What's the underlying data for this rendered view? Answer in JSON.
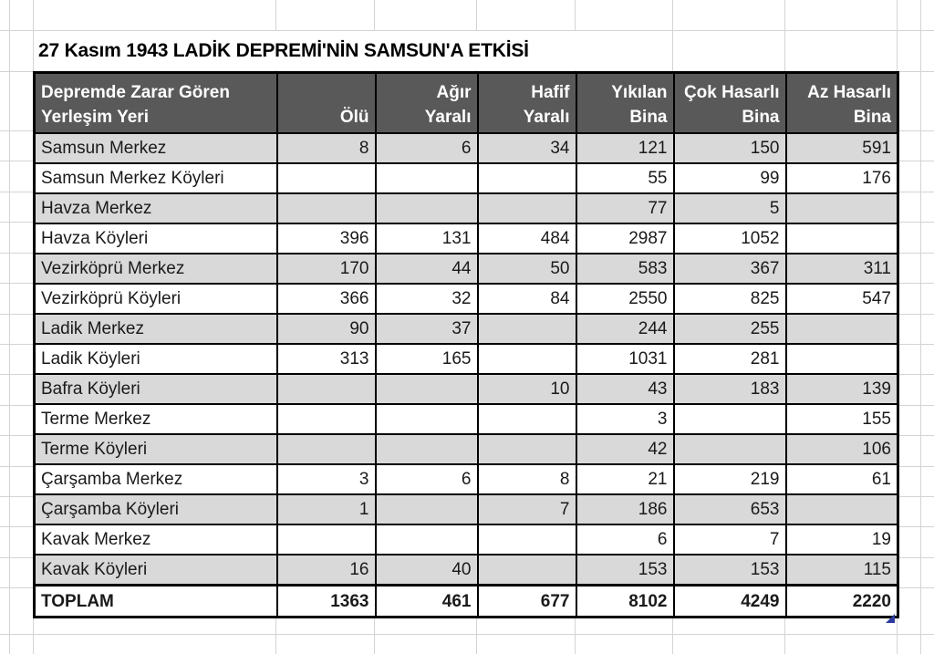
{
  "sheet": {
    "title": "27 Kasım 1943 LADİK DEPREMİ'NİN SAMSUN'A ETKİSİ",
    "table": {
      "header": {
        "cols": [
          {
            "line1": "Depremde Zarar Gören",
            "line2": "Yerleşim Yeri",
            "align": "left"
          },
          {
            "line1": "",
            "line2": "Ölü",
            "align": "right"
          },
          {
            "line1": "Ağır",
            "line2": "Yaralı",
            "align": "right"
          },
          {
            "line1": "Hafif",
            "line2": "Yaralı",
            "align": "right"
          },
          {
            "line1": "Yıkılan",
            "line2": "Bina",
            "align": "right"
          },
          {
            "line1": "Çok Hasarlı",
            "line2": "Bina",
            "align": "right"
          },
          {
            "line1": "Az Hasarlı",
            "line2": "Bina",
            "align": "right"
          }
        ]
      },
      "rows": [
        {
          "name": "Samsun Merkez",
          "values": [
            "8",
            "6",
            "34",
            "121",
            "150",
            "591"
          ]
        },
        {
          "name": "Samsun Merkez Köyleri",
          "values": [
            "",
            "",
            "",
            "55",
            "99",
            "176"
          ]
        },
        {
          "name": "Havza Merkez",
          "values": [
            "",
            "",
            "",
            "77",
            "5",
            ""
          ]
        },
        {
          "name": "Havza Köyleri",
          "values": [
            "396",
            "131",
            "484",
            "2987",
            "1052",
            ""
          ]
        },
        {
          "name": "Vezirköprü Merkez",
          "values": [
            "170",
            "44",
            "50",
            "583",
            "367",
            "311"
          ]
        },
        {
          "name": "Vezirköprü Köyleri",
          "values": [
            "366",
            "32",
            "84",
            "2550",
            "825",
            "547"
          ]
        },
        {
          "name": "Ladik Merkez",
          "values": [
            "90",
            "37",
            "",
            "244",
            "255",
            ""
          ]
        },
        {
          "name": "Ladik Köyleri",
          "values": [
            "313",
            "165",
            "",
            "1031",
            "281",
            ""
          ]
        },
        {
          "name": "Bafra Köyleri",
          "values": [
            "",
            "",
            "10",
            "43",
            "183",
            "139"
          ]
        },
        {
          "name": "Terme Merkez",
          "values": [
            "",
            "",
            "",
            "3",
            "",
            "155"
          ]
        },
        {
          "name": "Terme Köyleri",
          "values": [
            "",
            "",
            "",
            "42",
            "",
            "106"
          ]
        },
        {
          "name": "Çarşamba Merkez",
          "values": [
            "3",
            "6",
            "8",
            "21",
            "219",
            "61"
          ]
        },
        {
          "name": "Çarşamba Köyleri",
          "values": [
            "1",
            "",
            "7",
            "186",
            "653",
            ""
          ]
        },
        {
          "name": "Kavak Merkez",
          "values": [
            "",
            "",
            "",
            "6",
            "7",
            "19"
          ]
        },
        {
          "name": "Kavak Köyleri",
          "values": [
            "16",
            "40",
            "",
            "153",
            "153",
            "115"
          ]
        }
      ],
      "total_row": {
        "name": "TOPLAM",
        "values": [
          "1363",
          "461",
          "677",
          "8102",
          "4249",
          "2220"
        ]
      }
    },
    "colors": {
      "header_bg": "#595959",
      "header_text": "#ffffff",
      "row_alt_bg": "#d9d9d9",
      "row_bg": "#ffffff",
      "table_border": "#000000",
      "gridline": "#d4d4d4",
      "cell_text": "#1a1a1a",
      "fill_handle": "#2b3a9e"
    }
  }
}
